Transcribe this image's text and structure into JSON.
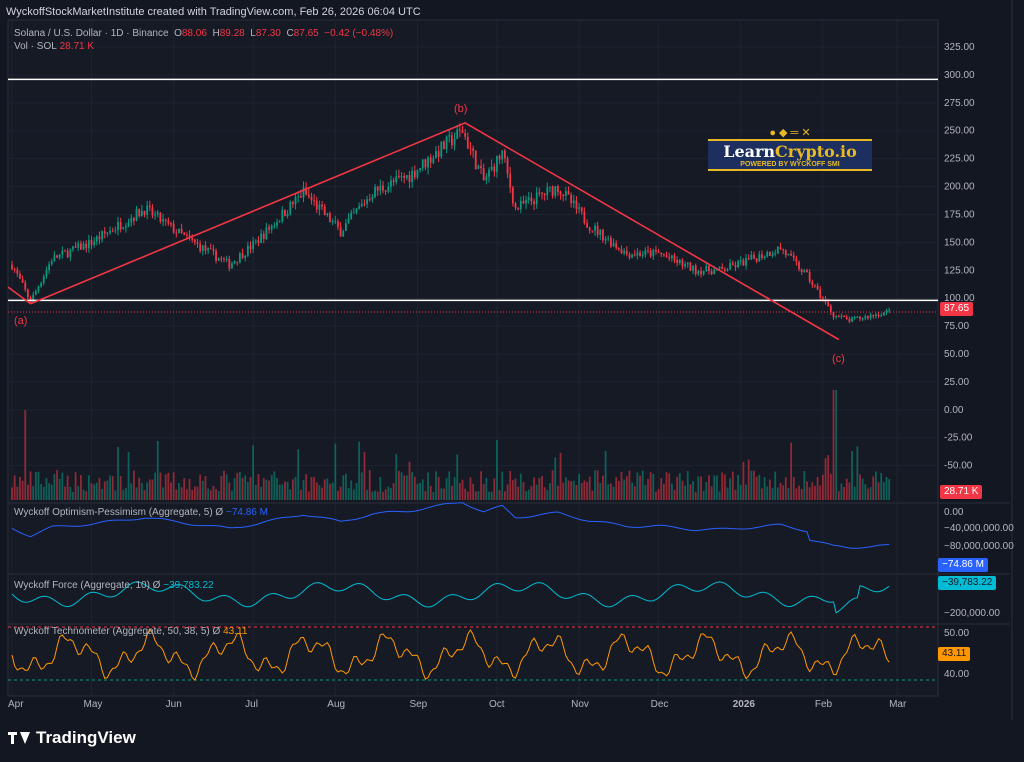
{
  "header": "WyckoffStockMarketInstitute created with TradingView.com, Feb 26, 2026 06:04 UTC",
  "symbol": {
    "name": "Solana / U.S. Dollar · 1D · Binance",
    "o_label": "O",
    "o": "88.06",
    "h_label": "H",
    "h": "89.28",
    "l_label": "L",
    "l": "87.30",
    "c_label": "C",
    "c": "87.65",
    "change": "−0.42 (−0.48%)",
    "vol_label": "Vol · SOL",
    "vol": "28.71 K"
  },
  "price_tag": "87.65",
  "vol_tag": "28.71 K",
  "indicators": {
    "op": {
      "label": "Wyckoff Optimism-Pessimism (Aggregate, 5)  Ø",
      "value": "−74.86 M",
      "ticks": [
        "0.00",
        "−40,000,000.00",
        "−80,000,000.00"
      ],
      "color": "#2962ff"
    },
    "force": {
      "label": "Wyckoff Force (Aggregate, 10)  Ø",
      "value": "−39,783.22",
      "ticks": [
        "−200,000.00"
      ],
      "color": "#00bcd4"
    },
    "tech": {
      "label": "Wyckoff Technometer (Aggregate, 50, 38, 5)  Ø",
      "value": "43.11",
      "ticks": [
        "50.00",
        "40.00"
      ],
      "color": "#ff9800"
    }
  },
  "annotations": {
    "a": "(a)",
    "b": "(b)",
    "c": "(c)"
  },
  "logo": {
    "title1": "Learn",
    "title2": "Crypto.io",
    "sub": "POWERED BY WYCKOFF SMI"
  },
  "footer": "TradingView",
  "chart_data": {
    "type": "candlestick",
    "title": "Solana / U.S. Dollar · 1D · Binance",
    "y_ticks": [
      325,
      300,
      275,
      250,
      225,
      200,
      175,
      150,
      125,
      100,
      75,
      50,
      25,
      0,
      -25,
      -50
    ],
    "ylim": [
      -62,
      335
    ],
    "x_ticks": [
      "Apr",
      "May",
      "Jun",
      "Jul",
      "Aug",
      "Sep",
      "Oct",
      "Nov",
      "Dec",
      "2026",
      "Feb",
      "Mar"
    ],
    "x_tick_days": [
      0,
      30,
      61,
      91,
      122,
      153,
      183,
      214,
      244,
      275,
      306,
      334
    ],
    "close_path_waypoints": [
      [
        0,
        130
      ],
      [
        7,
        97
      ],
      [
        15,
        135
      ],
      [
        30,
        150
      ],
      [
        50,
        180
      ],
      [
        65,
        155
      ],
      [
        82,
        130
      ],
      [
        92,
        150
      ],
      [
        110,
        195
      ],
      [
        124,
        160
      ],
      [
        136,
        195
      ],
      [
        150,
        210
      ],
      [
        170,
        250
      ],
      [
        178,
        205
      ],
      [
        185,
        230
      ],
      [
        190,
        180
      ],
      [
        206,
        200
      ],
      [
        218,
        165
      ],
      [
        232,
        140
      ],
      [
        244,
        140
      ],
      [
        258,
        125
      ],
      [
        268,
        125
      ],
      [
        279,
        135
      ],
      [
        290,
        145
      ],
      [
        300,
        120
      ],
      [
        310,
        85
      ],
      [
        316,
        80
      ],
      [
        331,
        88
      ]
    ],
    "horizontal_lines": [
      296,
      98
    ],
    "wave_lines": [
      {
        "label": "(a)",
        "day": 7,
        "price": 95
      },
      {
        "label": "(b)",
        "day": 171,
        "price": 257
      },
      {
        "label": "(c)",
        "day": 312,
        "price": 63
      }
    ],
    "last_price": 87.65
  }
}
